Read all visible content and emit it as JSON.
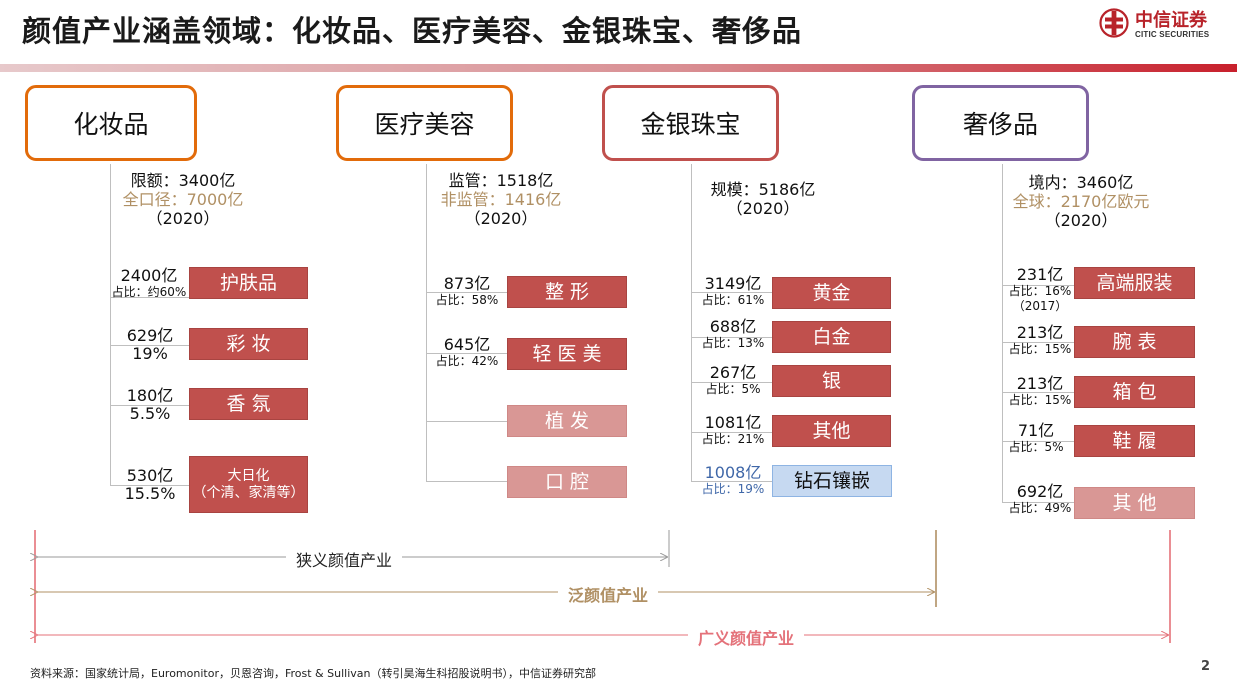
{
  "title": "颜值产业涵盖领域：化妆品、医疗美容、金银珠宝、奢侈品",
  "logo": {
    "cn": "中信证券",
    "en": "CITIC SECURITIES"
  },
  "colors": {
    "cosmetics": "#e26b0a",
    "medical": "#e26b0a",
    "jewelry": "#c0504d",
    "luxury": "#8064a2",
    "tag_dark": "#c0504d",
    "tag_light": "#d99795",
    "tag_blue": "#c6d9f1"
  },
  "categories": [
    {
      "name": "化妆品",
      "summary": [
        "限额：3400亿",
        "全口径：7000亿",
        "（2020）"
      ],
      "items": [
        {
          "value": "2400亿",
          "share": "占比：约60%",
          "tag": "护肤品"
        },
        {
          "value": "629亿",
          "share": "19%",
          "tag": "彩 妆"
        },
        {
          "value": "180亿",
          "share": "5.5%",
          "tag": "香 氛"
        },
        {
          "value": "530亿",
          "share": "15.5%",
          "tag": "大日化",
          "tag2": "（个清、家清等）"
        }
      ]
    },
    {
      "name": "医疗美容",
      "summary": [
        "监管：1518亿",
        "非监管：1416亿",
        "（2020）"
      ],
      "items": [
        {
          "value": "873亿",
          "share": "占比：58%",
          "tag": "整 形"
        },
        {
          "value": "645亿",
          "share": "占比：42%",
          "tag": "轻 医 美"
        },
        {
          "tag": "植 发"
        },
        {
          "tag": "口 腔"
        }
      ]
    },
    {
      "name": "金银珠宝",
      "summary": [
        "规模：5186亿",
        "（2020）"
      ],
      "items": [
        {
          "value": "3149亿",
          "share": "占比：61%",
          "tag": "黄金"
        },
        {
          "value": "688亿",
          "share": "占比：13%",
          "tag": "白金"
        },
        {
          "value": "267亿",
          "share": "占比：5%",
          "tag": "银"
        },
        {
          "value": "1081亿",
          "share": "占比：21%",
          "tag": "其他"
        },
        {
          "value": "1008亿",
          "share": "占比：19%",
          "tag": "钻石镶嵌"
        }
      ]
    },
    {
      "name": "奢侈品",
      "summary": [
        "境内：3460亿",
        "全球：2170亿欧元",
        "（2020）"
      ],
      "items": [
        {
          "value": "231亿",
          "share": "占比：16%",
          "note": "（2017）",
          "tag": "高端服装"
        },
        {
          "value": "213亿",
          "share": "占比：15%",
          "tag": "腕 表"
        },
        {
          "value": "213亿",
          "share": "占比：15%",
          "tag": "箱 包"
        },
        {
          "value": "71亿",
          "share": "占比：5%",
          "tag": "鞋 履"
        },
        {
          "value": "692亿",
          "share": "占比：49%",
          "tag": "其 他"
        }
      ]
    }
  ],
  "scopes": [
    {
      "label": "狭义颜值产业",
      "color": "#888888"
    },
    {
      "label": "泛颜值产业",
      "color": "#b09064"
    },
    {
      "label": "广义颜值产业",
      "color": "#e4727a"
    }
  ],
  "footer": "资料来源：国家统计局，Euromonitor，贝恩咨询，Frost & Sullivan（转引昊海生科招股说明书），中信证券研究部",
  "page_number": "2"
}
